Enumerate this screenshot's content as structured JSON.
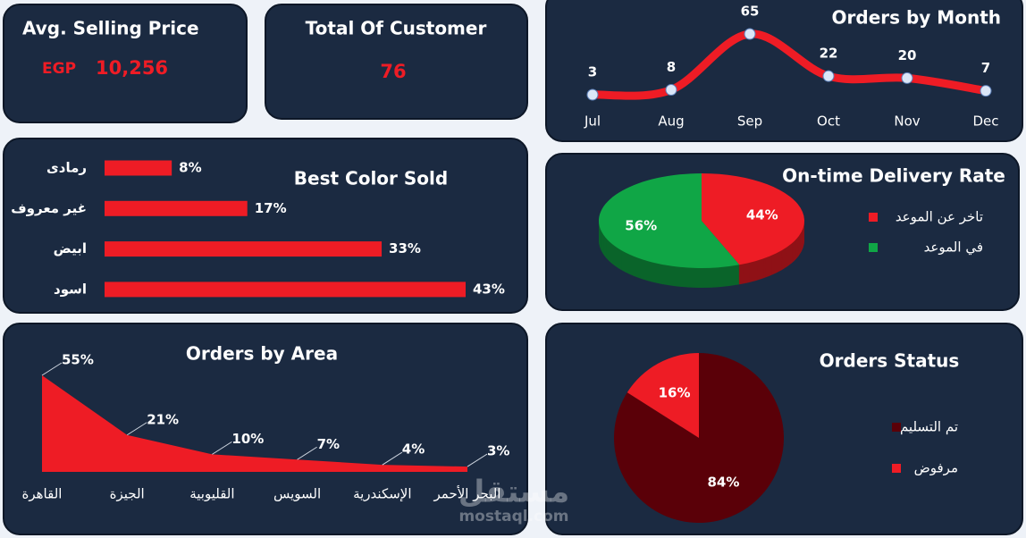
{
  "kpis": [
    {
      "title": "Avg. Selling Price",
      "currency": "EGP",
      "value": "10,256"
    },
    {
      "title": "Total Of Customer",
      "value": "76"
    }
  ],
  "chart_data": [
    {
      "type": "line",
      "title": "Orders by Month",
      "categories": [
        "Jul",
        "Aug",
        "Sep",
        "Oct",
        "Nov",
        "Dec"
      ],
      "values": [
        3,
        8,
        65,
        22,
        20,
        7
      ],
      "color": "#ee1c25",
      "marker_color": "#dbe6f7"
    },
    {
      "type": "bar",
      "orientation": "horizontal",
      "title": "Best Color Sold",
      "categories": [
        "رمادى",
        "غير معروف",
        "ابيض",
        "اسود"
      ],
      "values": [
        8,
        17,
        33,
        43
      ],
      "value_labels": [
        "8%",
        "17%",
        "33%",
        "43%"
      ],
      "color": "#ee1c25"
    },
    {
      "type": "pie",
      "style": "3d",
      "title": "On-time Delivery Rate",
      "categories": [
        "تاخر عن الموعد",
        "في الموعد"
      ],
      "values": [
        44,
        56
      ],
      "value_labels": [
        "44%",
        "56%"
      ],
      "colors": [
        "#ee1c25",
        "#10a646"
      ]
    },
    {
      "type": "area",
      "title": "Orders by Area",
      "categories": [
        "القاهرة",
        "الجيزة",
        "القليوبية",
        "السويس",
        "الإسكندرية",
        "البحر الأحمر"
      ],
      "values": [
        55,
        21,
        10,
        7,
        4,
        3
      ],
      "value_labels": [
        "55%",
        "21%",
        "10%",
        "7%",
        "4%",
        "3%"
      ],
      "color": "#ee1c25"
    },
    {
      "type": "pie",
      "title": "Orders Status",
      "categories": [
        "تم التسليم",
        "مرفوض"
      ],
      "values": [
        84,
        16
      ],
      "value_labels": [
        "84%",
        "16%"
      ],
      "colors": [
        "#5a0008",
        "#ee1c25"
      ]
    }
  ],
  "watermark": {
    "arabic": "مستقل",
    "latin": "mostaql.com"
  }
}
